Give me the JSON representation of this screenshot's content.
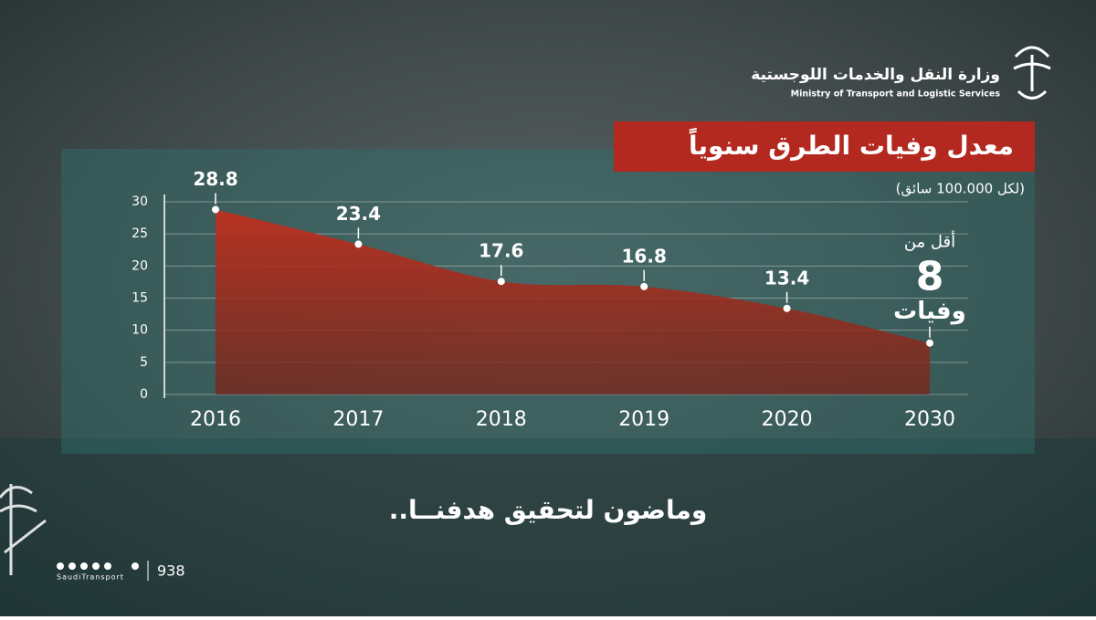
{
  "header": {
    "org_ar": "وزارة النقل والخدمات اللوجستية",
    "org_en": "Ministry of Transport and Logistic Services"
  },
  "chart_data": {
    "type": "area",
    "title": "معدل وفيات الطرق سنوياً",
    "subtitle": "(لكل 100.000 سائق)",
    "categories": [
      "2016",
      "2017",
      "2018",
      "2019",
      "2020",
      "2030"
    ],
    "values": [
      28.8,
      23.4,
      17.6,
      16.8,
      13.4,
      8
    ],
    "color": "#b3291f",
    "ylim": [
      0,
      30
    ],
    "yticks": [
      0,
      5,
      10,
      15,
      20,
      25,
      30
    ],
    "grid": true,
    "annotations": [
      "أقل من",
      "وفيات"
    ]
  },
  "footer": {
    "slogan": "وماضون لتحقيق هدفنــا..",
    "handle": "SaudiTransport",
    "phone": "938"
  }
}
